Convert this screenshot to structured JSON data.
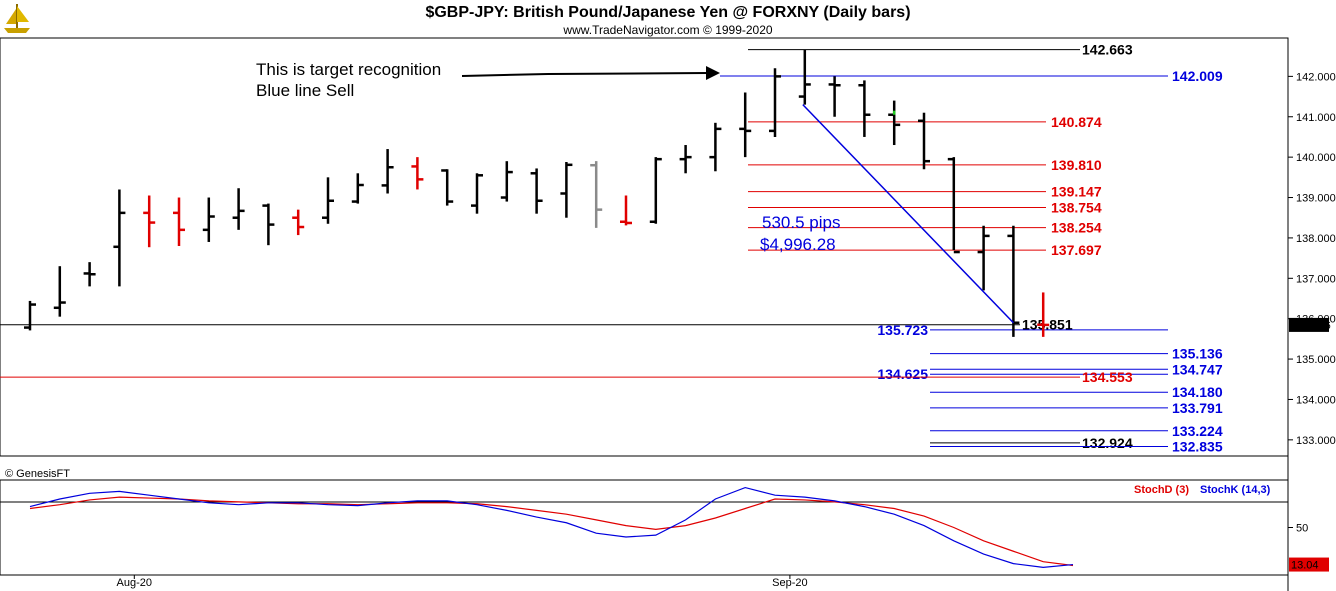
{
  "header": {
    "title": "$GBP-JPY:  British Pound/Japanese Yen @ FORXNY  (Daily bars)",
    "subtitle": "www.TradeNavigator.com © 1999-2020"
  },
  "colors": {
    "black": "#000000",
    "red": "#e00000",
    "blue": "#0000dd",
    "gray": "#8a8a8a",
    "green": "#22cc22"
  },
  "icons": {
    "logo": "ship-icon"
  },
  "chart_data": [
    {
      "type": "bar",
      "name": "price-panel",
      "bar_kind": "ohlc",
      "ylim": [
        132.6,
        142.95
      ],
      "yticks": [
        "142.000",
        "141.000",
        "140.000",
        "139.000",
        "138.000",
        "137.000",
        "136.000",
        "135.000",
        "134.000",
        "133.000"
      ],
      "yticks_values": [
        142,
        141,
        140,
        139,
        138,
        137,
        136,
        135,
        134,
        133
      ],
      "x_labels": [
        {
          "text": "Aug-20",
          "index": 3.5
        },
        {
          "text": "Sep-20",
          "index": 25.5
        }
      ],
      "last_price_label": "135.846",
      "last_price": 135.846,
      "bars": [
        {
          "o": 135.78,
          "h": 136.44,
          "l": 135.71,
          "c": 136.35,
          "color": "black"
        },
        {
          "o": 136.27,
          "h": 137.3,
          "l": 136.05,
          "c": 136.4,
          "color": "black"
        },
        {
          "o": 137.12,
          "h": 137.4,
          "l": 136.8,
          "c": 137.1,
          "color": "black"
        },
        {
          "o": 137.78,
          "h": 139.2,
          "l": 136.8,
          "c": 138.62,
          "color": "black"
        },
        {
          "o": 138.62,
          "h": 139.05,
          "l": 137.77,
          "c": 138.38,
          "color": "red"
        },
        {
          "o": 138.62,
          "h": 139.0,
          "l": 137.8,
          "c": 138.2,
          "color": "red"
        },
        {
          "o": 138.2,
          "h": 139.0,
          "l": 137.9,
          "c": 138.53,
          "color": "black"
        },
        {
          "o": 138.5,
          "h": 139.23,
          "l": 138.2,
          "c": 138.67,
          "color": "black"
        },
        {
          "o": 138.8,
          "h": 138.85,
          "l": 137.82,
          "c": 138.33,
          "color": "black"
        },
        {
          "o": 138.5,
          "h": 138.7,
          "l": 138.07,
          "c": 138.27,
          "color": "red"
        },
        {
          "o": 138.5,
          "h": 139.5,
          "l": 138.35,
          "c": 138.92,
          "color": "black"
        },
        {
          "o": 138.9,
          "h": 139.6,
          "l": 138.85,
          "c": 139.31,
          "color": "black"
        },
        {
          "o": 139.3,
          "h": 140.2,
          "l": 139.1,
          "c": 139.75,
          "color": "black"
        },
        {
          "o": 139.77,
          "h": 140.0,
          "l": 139.2,
          "c": 139.45,
          "color": "red"
        },
        {
          "o": 139.67,
          "h": 139.7,
          "l": 138.8,
          "c": 138.9,
          "color": "black"
        },
        {
          "o": 138.8,
          "h": 139.6,
          "l": 138.6,
          "c": 139.55,
          "color": "black"
        },
        {
          "o": 139.0,
          "h": 139.9,
          "l": 138.9,
          "c": 139.63,
          "color": "black"
        },
        {
          "o": 139.6,
          "h": 139.72,
          "l": 138.6,
          "c": 138.92,
          "color": "black"
        },
        {
          "o": 139.1,
          "h": 139.88,
          "l": 138.5,
          "c": 139.81,
          "color": "black"
        },
        {
          "o": 139.8,
          "h": 139.9,
          "l": 138.25,
          "c": 138.7,
          "color": "gray"
        },
        {
          "o": 138.4,
          "h": 139.05,
          "l": 138.31,
          "c": 138.37,
          "color": "red"
        },
        {
          "o": 138.4,
          "h": 140.0,
          "l": 138.35,
          "c": 139.95,
          "color": "black"
        },
        {
          "o": 139.95,
          "h": 140.3,
          "l": 139.6,
          "c": 140.0,
          "color": "black"
        },
        {
          "o": 140.0,
          "h": 140.85,
          "l": 139.65,
          "c": 140.7,
          "color": "black"
        },
        {
          "o": 140.7,
          "h": 141.6,
          "l": 140.0,
          "c": 140.65,
          "color": "black"
        },
        {
          "o": 140.65,
          "h": 142.2,
          "l": 140.5,
          "c": 142.0,
          "color": "black"
        },
        {
          "o": 141.5,
          "h": 142.663,
          "l": 141.3,
          "c": 141.8,
          "color": "black"
        },
        {
          "o": 141.8,
          "h": 142.0,
          "l": 141.0,
          "c": 141.78,
          "color": "black"
        },
        {
          "o": 141.78,
          "h": 141.9,
          "l": 140.5,
          "c": 141.05,
          "color": "black"
        },
        {
          "o": 141.05,
          "h": 141.4,
          "l": 140.3,
          "c": 140.8,
          "color": "black"
        },
        {
          "o": 140.9,
          "h": 141.1,
          "l": 139.7,
          "c": 139.9,
          "color": "black"
        },
        {
          "o": 139.95,
          "h": 140.0,
          "l": 137.7,
          "c": 137.65,
          "color": "black"
        },
        {
          "o": 137.65,
          "h": 138.3,
          "l": 136.7,
          "c": 138.05,
          "color": "black"
        },
        {
          "o": 138.05,
          "h": 138.3,
          "l": 135.55,
          "c": 135.9,
          "color": "black"
        },
        {
          "o": 135.85,
          "h": 136.65,
          "l": 135.55,
          "c": 135.846,
          "color": "red"
        }
      ],
      "trendline": {
        "from": {
          "index": 26.0,
          "value": 141.3
        },
        "to": {
          "index": 33.0,
          "value": 135.9
        },
        "color": "blue"
      },
      "fib_levels": [
        {
          "label": "142.663",
          "value": 142.663,
          "color": "black"
        },
        {
          "label": "142.009",
          "value": 142.009,
          "color": "blue"
        },
        {
          "label": "140.874",
          "value": 140.874,
          "color": "red"
        },
        {
          "label": "139.810",
          "value": 139.81,
          "color": "red"
        },
        {
          "label": "139.147",
          "value": 139.147,
          "color": "red"
        },
        {
          "label": "138.754",
          "value": 138.754,
          "color": "red"
        },
        {
          "label": "138.254",
          "value": 138.254,
          "color": "red"
        },
        {
          "label": "137.697",
          "value": 137.697,
          "color": "red"
        },
        {
          "label": "135.851",
          "value": 135.851,
          "color": "black"
        },
        {
          "label": "135.723",
          "value": 135.723,
          "color": "blue"
        },
        {
          "label": "135.136",
          "value": 135.136,
          "color": "blue"
        },
        {
          "label": "134.747",
          "value": 134.747,
          "color": "blue"
        },
        {
          "label": "134.625",
          "value": 134.625,
          "color": "blue"
        },
        {
          "label": "134.553",
          "value": 134.553,
          "color": "red"
        },
        {
          "label": "134.180",
          "value": 134.18,
          "color": "blue"
        },
        {
          "label": "133.791",
          "value": 133.791,
          "color": "blue"
        },
        {
          "label": "133.224",
          "value": 133.224,
          "color": "blue"
        },
        {
          "label": "132.924",
          "value": 132.924,
          "color": "black"
        },
        {
          "label": "132.835",
          "value": 132.835,
          "color": "blue"
        }
      ],
      "annotations": [
        {
          "text": "This is target recognition"
        },
        {
          "text": "Blue line Sell"
        },
        {
          "text": "530.5 pips"
        },
        {
          "text": "$4,996.28"
        }
      ],
      "watermark": "© GenesisFT"
    },
    {
      "type": "line",
      "name": "stochastic-panel",
      "ylim": [
        0,
        100
      ],
      "yticks": [
        "50"
      ],
      "yticks_values": [
        50
      ],
      "last_value_label": "13.04",
      "series": [
        {
          "name": "StochD (3)",
          "color": "red",
          "values": [
            70,
            74,
            79,
            82,
            81,
            80,
            78,
            77,
            76,
            75,
            75,
            74,
            75,
            76,
            76,
            75,
            72,
            68,
            64,
            58,
            52,
            48,
            52,
            60,
            70,
            80,
            79,
            77,
            74,
            70,
            62,
            50,
            36,
            25,
            14,
            10
          ]
        },
        {
          "name": "StochK (14,3)",
          "color": "blue",
          "values": [
            72,
            80,
            86,
            88,
            84,
            80,
            76,
            74,
            76,
            76,
            74,
            73,
            76,
            78,
            78,
            74,
            68,
            61,
            55,
            44,
            40,
            42,
            58,
            80,
            92,
            84,
            82,
            78,
            72,
            64,
            52,
            36,
            22,
            12,
            8,
            11
          ]
        }
      ]
    }
  ]
}
